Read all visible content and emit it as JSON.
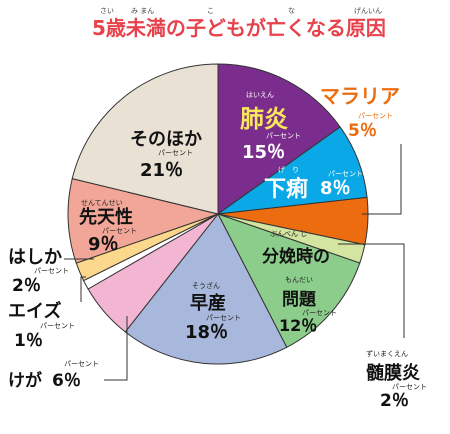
{
  "chart_data": {
    "type": "pie",
    "title": "5歳未満の子どもが亡くなる原因",
    "title_ruby": [
      "さい",
      "み まん",
      "こ",
      "な",
      "げんいん"
    ],
    "percent_ruby": "パーセント",
    "slices": [
      {
        "label": "肺炎",
        "ruby": "はいえん",
        "value": 15,
        "text": "15％",
        "color": "#7b2d8e"
      },
      {
        "label": "下痢",
        "ruby": "げ　り",
        "value": 8,
        "text": "8％",
        "color": "#0aa8e6"
      },
      {
        "label": "マラリア",
        "value": 5,
        "text": "5％",
        "color": "#ec6c0f"
      },
      {
        "label": "髄膜炎",
        "ruby": "ずいまくえん",
        "value": 2,
        "text": "2％",
        "color": "#d3e5a0"
      },
      {
        "label": "分娩時の問題",
        "ruby": [
          "ぶんべん じ",
          "もんだい"
        ],
        "value": 12,
        "text": "12％",
        "color": "#8ccd8c"
      },
      {
        "label": "早産",
        "ruby": "そうざん",
        "value": 18,
        "text": "18％",
        "color": "#a8b8dc"
      },
      {
        "label": "けが",
        "value": 6,
        "text": "6％",
        "color": "#f2b6d2"
      },
      {
        "label": "エイズ",
        "value": 1,
        "text": "1％",
        "color": "#ffffff"
      },
      {
        "label": "はしか",
        "value": 2,
        "text": "2％",
        "color": "#fbd88c"
      },
      {
        "label": "先天性",
        "ruby": "せんてんせい",
        "value": 9,
        "text": "9％",
        "color": "#f1a697"
      },
      {
        "label": "そのほか",
        "value": 21,
        "text": "21％",
        "color": "#e9e2d4"
      }
    ]
  }
}
